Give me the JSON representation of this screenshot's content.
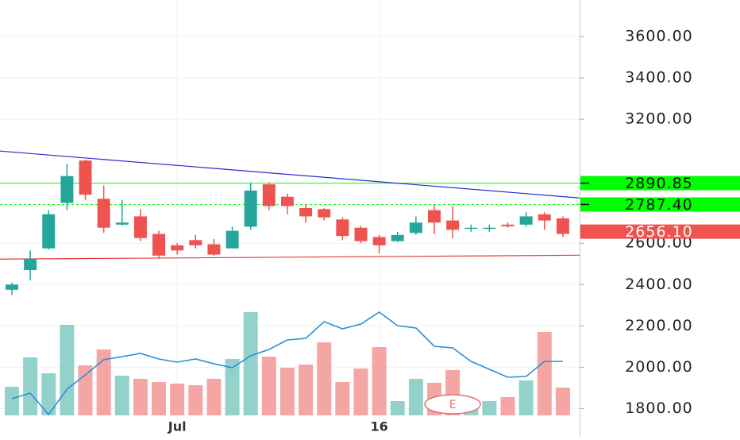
{
  "chart_data": {
    "type": "candlestick",
    "categories": [
      null,
      null,
      null,
      null,
      null,
      null,
      null,
      null,
      null,
      "Jul",
      null,
      null,
      null,
      null,
      null,
      null,
      null,
      null,
      null,
      null,
      "16",
      null,
      null,
      null,
      null,
      null,
      null,
      null,
      null,
      null,
      null
    ],
    "open": [
      2375,
      2470,
      2575,
      2795,
      3000,
      2815,
      2690,
      2730,
      2645,
      2590,
      2615,
      2595,
      2575,
      2680,
      2885,
      2825,
      2770,
      2765,
      2715,
      2675,
      2630,
      2610,
      2650,
      2760,
      2710,
      2670,
      2670,
      2690,
      2690,
      2740,
      2720
    ],
    "high": [
      2410,
      2565,
      2760,
      2985,
      3005,
      2880,
      2810,
      2765,
      2660,
      2600,
      2640,
      2620,
      2680,
      2890,
      2895,
      2840,
      2790,
      2770,
      2725,
      2685,
      2640,
      2655,
      2730,
      2785,
      2780,
      2690,
      2690,
      2700,
      2750,
      2750,
      2730
    ],
    "low": [
      2350,
      2420,
      2570,
      2760,
      2810,
      2650,
      2685,
      2610,
      2525,
      2545,
      2575,
      2540,
      2575,
      2665,
      2760,
      2740,
      2700,
      2710,
      2615,
      2600,
      2550,
      2605,
      2640,
      2645,
      2625,
      2655,
      2655,
      2675,
      2680,
      2665,
      2630
    ],
    "close": [
      2400,
      2525,
      2740,
      2925,
      2835,
      2675,
      2700,
      2625,
      2540,
      2565,
      2590,
      2545,
      2660,
      2855,
      2780,
      2780,
      2730,
      2725,
      2635,
      2610,
      2590,
      2640,
      2700,
      2700,
      2665,
      2675,
      2675,
      2682,
      2730,
      2710,
      2645
    ],
    "up_color": "#26a69a",
    "down_color": "#ef5350",
    "volume": {
      "values": [
        36,
        73,
        53,
        114,
        63,
        83,
        50,
        46,
        42,
        40,
        38,
        46,
        71,
        130,
        74,
        60,
        64,
        92,
        42,
        59,
        86,
        18,
        46,
        41,
        57,
        18,
        18,
        23,
        44,
        105,
        35
      ],
      "up_color": "#92d2ca",
      "down_color": "#f6a5a5",
      "ylim": [
        0,
        140
      ],
      "ma": {
        "color": "#2a8fd6",
        "values": [
          21,
          28,
          1,
          33,
          51,
          70,
          74,
          78,
          71,
          67,
          71,
          65,
          60,
          75,
          83,
          95,
          97,
          118,
          109,
          115,
          130,
          113,
          110,
          87,
          85,
          68,
          58,
          48,
          49,
          68,
          68
        ]
      }
    },
    "ylim": [
      1740,
      3777
    ],
    "yticks": [
      {
        "value": 1800,
        "label": "1800.00"
      },
      {
        "value": 2000,
        "label": "2000.00"
      },
      {
        "value": 2200,
        "label": "2200.00"
      },
      {
        "value": 2400,
        "label": "2400.00"
      },
      {
        "value": 2600,
        "label": "2600.00"
      },
      {
        "value": 3200,
        "label": "3200.00"
      },
      {
        "value": 3400,
        "label": "3400.00"
      },
      {
        "value": 3600,
        "label": "3600.00"
      }
    ],
    "grid": true,
    "price_lines": [
      {
        "value": 2890.85,
        "label": "2890.85",
        "color": "#00ff00",
        "text_color": "#111111",
        "style": "solid"
      },
      {
        "value": 2787.4,
        "label": "2787.40",
        "color": "#00ff00",
        "text_color": "#111111",
        "style": "dashed"
      },
      {
        "value": 2656.1,
        "label": "2656.10",
        "color": "#ef5350",
        "text_color": "#ffffff",
        "style": "none"
      }
    ],
    "trendlines": [
      {
        "color": "#2a2ad0",
        "start": 3046,
        "end": 2819
      },
      {
        "color": "#e53935",
        "start": 2523,
        "end": 2542
      }
    ],
    "markers": [
      {
        "label": "E",
        "index": 24
      }
    ]
  }
}
